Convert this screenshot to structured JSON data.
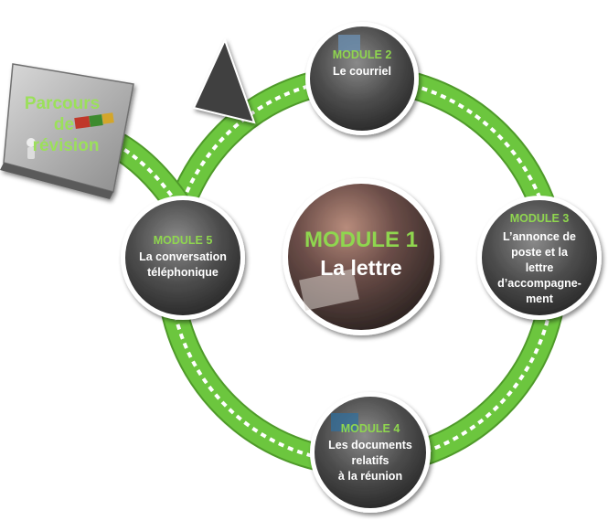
{
  "colors": {
    "track": "#6cc63e",
    "track_edge": "#4f9a2a",
    "dash": "#ffffff",
    "module_label": "#8fd64f",
    "text": "#ffffff",
    "revision_label": "#9be05a"
  },
  "revision": {
    "line1": "Parcours",
    "line2": "de",
    "line3": "révision"
  },
  "modules": [
    {
      "id": "m1",
      "label": "MODULE 1",
      "lines": [
        "La lettre"
      ]
    },
    {
      "id": "m2",
      "label": "MODULE 2",
      "lines": [
        "Le courriel"
      ]
    },
    {
      "id": "m3",
      "label": "MODULE 3",
      "lines": [
        "L’annonce de",
        "poste et la",
        "lettre",
        "d’accompagne-",
        "ment"
      ]
    },
    {
      "id": "m4",
      "label": "MODULE 4",
      "lines": [
        "Les documents",
        "relatifs",
        "à la réunion"
      ]
    },
    {
      "id": "m5",
      "label": "MODULE 5",
      "lines": [
        "La conversation",
        "téléphonique"
      ]
    }
  ]
}
